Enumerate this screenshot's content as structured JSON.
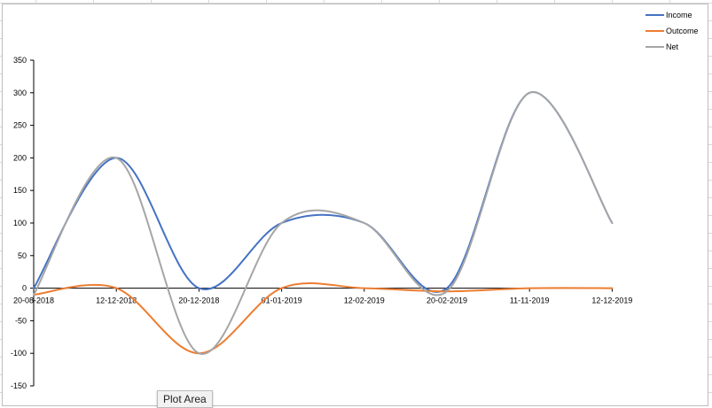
{
  "tooltip": {
    "text": "Plot Area"
  },
  "colors": {
    "income": "#4472c4",
    "outcome": "#ed7d31",
    "net": "#a5a5a5"
  },
  "chart_data": {
    "type": "line",
    "smooth": true,
    "title": "",
    "xlabel": "",
    "ylabel": "",
    "categories": [
      "20-08-2018",
      "12-12-2018",
      "20-12-2018",
      "01-01-2019",
      "12-02-2019",
      "20-02-2019",
      "11-11-2019",
      "12-12-2019"
    ],
    "ylim": [
      -150,
      350
    ],
    "yticks": [
      -150,
      -100,
      -50,
      0,
      50,
      100,
      150,
      200,
      250,
      300,
      350
    ],
    "grid": false,
    "legend_position": "top-right",
    "series": [
      {
        "name": "Income",
        "color": "#4472c4",
        "values": [
          0,
          200,
          0,
          100,
          100,
          0,
          300,
          100
        ]
      },
      {
        "name": "Outcome",
        "color": "#ed7d31",
        "values": [
          -10,
          0,
          -100,
          0,
          0,
          -5,
          0,
          0
        ]
      },
      {
        "name": "Net",
        "color": "#a5a5a5",
        "values": [
          -10,
          200,
          -100,
          100,
          100,
          -5,
          300,
          100
        ]
      }
    ]
  }
}
